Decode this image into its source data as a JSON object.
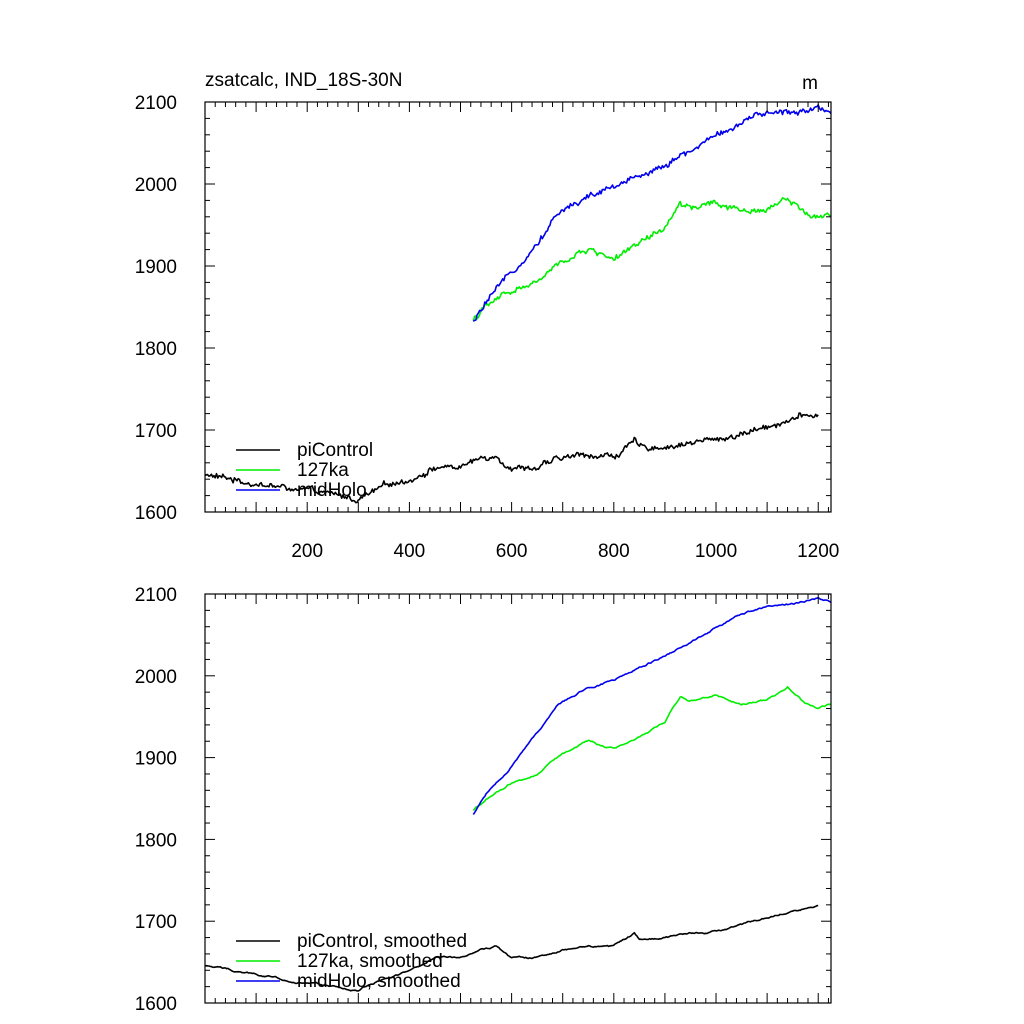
{
  "figure": {
    "title": "zsatcalc, IND_18S-30N",
    "units": "m"
  },
  "panels": [
    {
      "id": "raw",
      "legend": [
        "piControl",
        "127ka",
        "midHolo"
      ],
      "xticks": [
        "200",
        "400",
        "600",
        "800",
        "1000",
        "1200"
      ],
      "yticks": [
        "1600",
        "1700",
        "1800",
        "1900",
        "2000",
        "2100"
      ]
    },
    {
      "id": "smoothed",
      "legend": [
        "piControl, smoothed",
        "127ka, smoothed",
        "midHolo, smoothed"
      ],
      "xticks": [],
      "yticks": [
        "1600",
        "1700",
        "1800",
        "1900",
        "2000",
        "2100"
      ]
    }
  ],
  "colors": {
    "piControl": "#000000",
    "127ka": "#00ee00",
    "midHolo": "#0000ee"
  },
  "chart_data": [
    {
      "type": "line",
      "title": "zsatcalc, IND_18S-30N",
      "units": "m",
      "xlabel": "",
      "ylabel": "",
      "xlim": [
        0,
        1225
      ],
      "ylim": [
        1600,
        2100
      ],
      "legend_position": "bottom-left",
      "series": [
        {
          "name": "piControl",
          "x": [
            0,
            50,
            100,
            150,
            200,
            250,
            300,
            350,
            400,
            450,
            500,
            540,
            570,
            600,
            650,
            700,
            750,
            800,
            840,
            850,
            900,
            950,
            1000,
            1050,
            1100,
            1150,
            1200
          ],
          "y": [
            1645,
            1640,
            1635,
            1630,
            1625,
            1620,
            1615,
            1630,
            1640,
            1655,
            1655,
            1665,
            1670,
            1655,
            1655,
            1665,
            1670,
            1668,
            1685,
            1678,
            1680,
            1685,
            1688,
            1695,
            1705,
            1715,
            1718
          ]
        },
        {
          "name": "127ka",
          "x": [
            525,
            550,
            600,
            650,
            700,
            750,
            800,
            850,
            900,
            930,
            950,
            1000,
            1050,
            1100,
            1140,
            1175,
            1200,
            1225
          ],
          "y": [
            1835,
            1850,
            1870,
            1880,
            1905,
            1920,
            1910,
            1925,
            1945,
            1975,
            1970,
            1975,
            1965,
            1970,
            1985,
            1965,
            1960,
            1965
          ]
        },
        {
          "name": "midHolo",
          "x": [
            525,
            550,
            600,
            650,
            690,
            750,
            800,
            850,
            900,
            950,
            1000,
            1050,
            1100,
            1150,
            1200,
            1225
          ],
          "y": [
            1830,
            1855,
            1890,
            1930,
            1965,
            1985,
            1995,
            2010,
            2025,
            2040,
            2060,
            2075,
            2085,
            2088,
            2095,
            2090
          ]
        }
      ]
    },
    {
      "type": "line",
      "title": "",
      "xlabel": "",
      "ylabel": "",
      "xlim": [
        0,
        1225
      ],
      "ylim": [
        1600,
        2100
      ],
      "legend_position": "bottom-left",
      "series": [
        {
          "name": "piControl, smoothed",
          "x": [
            0,
            50,
            100,
            150,
            200,
            250,
            300,
            350,
            400,
            450,
            500,
            540,
            570,
            600,
            650,
            700,
            750,
            800,
            840,
            850,
            900,
            950,
            1000,
            1050,
            1100,
            1150,
            1200
          ],
          "y": [
            1645,
            1640,
            1635,
            1630,
            1625,
            1620,
            1615,
            1630,
            1640,
            1655,
            1655,
            1665,
            1670,
            1655,
            1655,
            1665,
            1670,
            1668,
            1685,
            1678,
            1680,
            1685,
            1688,
            1695,
            1705,
            1715,
            1718
          ]
        },
        {
          "name": "127ka, smoothed",
          "x": [
            525,
            550,
            600,
            650,
            700,
            750,
            800,
            850,
            900,
            930,
            950,
            1000,
            1050,
            1100,
            1140,
            1175,
            1200,
            1225
          ],
          "y": [
            1835,
            1850,
            1870,
            1880,
            1905,
            1920,
            1910,
            1925,
            1945,
            1975,
            1970,
            1975,
            1965,
            1970,
            1985,
            1965,
            1960,
            1965
          ]
        },
        {
          "name": "midHolo, smoothed",
          "x": [
            525,
            550,
            600,
            650,
            690,
            750,
            800,
            850,
            900,
            950,
            1000,
            1050,
            1100,
            1150,
            1200,
            1225
          ],
          "y": [
            1830,
            1855,
            1890,
            1930,
            1965,
            1985,
            1995,
            2010,
            2025,
            2040,
            2060,
            2075,
            2085,
            2088,
            2095,
            2090
          ]
        }
      ]
    }
  ]
}
